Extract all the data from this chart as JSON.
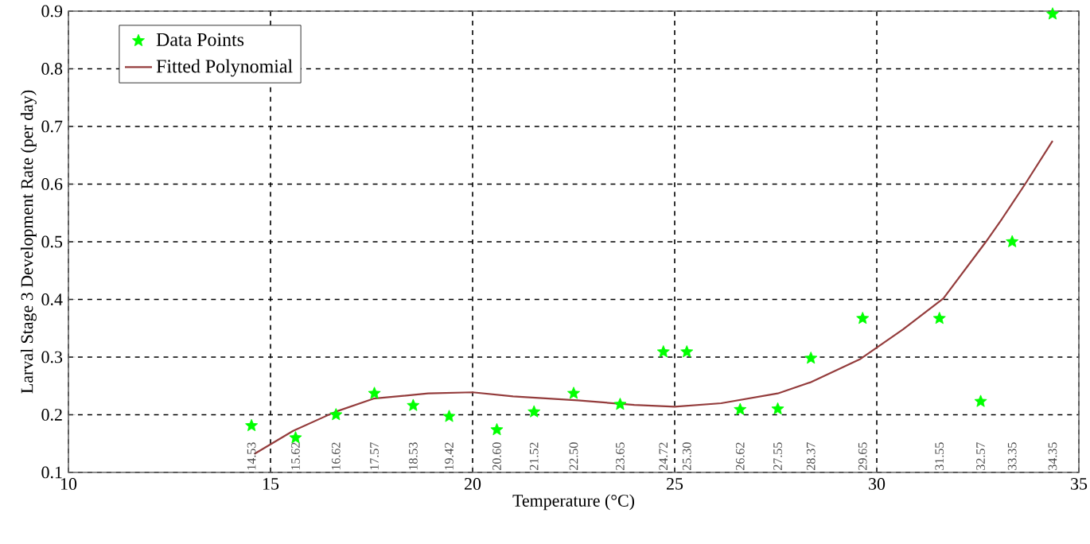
{
  "chart_data": {
    "type": "scatter",
    "xlabel": "Temperature (°C)",
    "ylabel": "Larval Stage 3 Development Rate (per day)",
    "xlim": [
      10,
      35
    ],
    "ylim": [
      0.1,
      0.9
    ],
    "xticks": [
      10,
      15,
      20,
      25,
      30,
      35
    ],
    "yticks": [
      0.1,
      0.2,
      0.3,
      0.4,
      0.5,
      0.6,
      0.7,
      0.8,
      0.9
    ],
    "grid": true,
    "legend": "top left",
    "series": [
      {
        "name": "Data Points",
        "marker": "star",
        "color": "#00ff00",
        "x": [
          14.53,
          15.62,
          16.62,
          17.57,
          18.53,
          19.42,
          20.6,
          21.52,
          22.5,
          23.65,
          24.72,
          25.3,
          26.62,
          27.55,
          28.37,
          29.65,
          31.55,
          32.57,
          33.35,
          34.35
        ],
        "values": [
          0.181,
          0.16,
          0.2,
          0.237,
          0.216,
          0.197,
          0.174,
          0.205,
          0.237,
          0.218,
          0.309,
          0.309,
          0.209,
          0.21,
          0.298,
          0.367,
          0.367,
          0.223,
          0.5,
          0.895
        ]
      },
      {
        "name": "Fitted Polynomial",
        "type": "line",
        "marker": "none",
        "color": "#943c3c",
        "x": [
          14.6,
          15.56,
          16.6,
          17.55,
          18.9,
          20,
          21,
          22.6,
          24,
          25,
          26.15,
          27.55,
          28.35,
          29.6,
          30.65,
          31.65,
          32.7,
          33.1,
          33.67,
          34.35
        ],
        "values": [
          0.132,
          0.172,
          0.205,
          0.228,
          0.237,
          0.239,
          0.232,
          0.225,
          0.217,
          0.214,
          0.22,
          0.237,
          0.256,
          0.297,
          0.348,
          0.402,
          0.5,
          0.54,
          0.6,
          0.675
        ]
      }
    ],
    "annotations": [
      "14.53",
      "15.62",
      "16.62",
      "17.57",
      "18.53",
      "19.42",
      "20.60",
      "21.52",
      "22.50",
      "23.65",
      "24.72",
      "25.30",
      "26.62",
      "27.55",
      "28.37",
      "29.65",
      "31.55",
      "32.57",
      "33.35",
      "34.35"
    ]
  }
}
